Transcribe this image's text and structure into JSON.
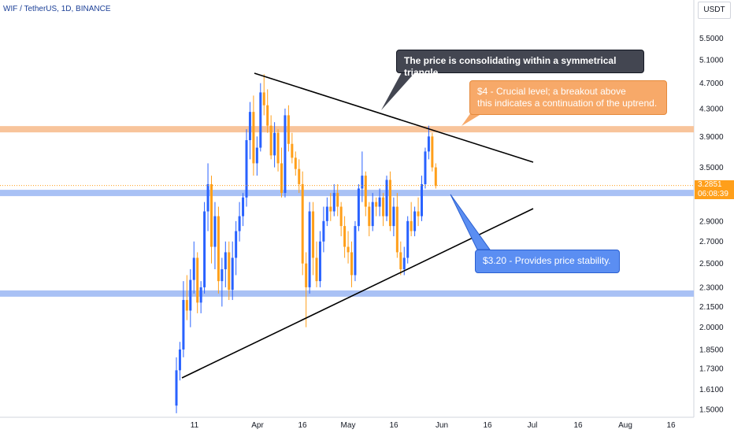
{
  "header": {
    "symbol": "WIF / TetherUS, 1D, BINANCE"
  },
  "currency_badge": "USDT",
  "price_label": {
    "price": "3.2851",
    "countdown": "06:08:39",
    "color": "#ff9f1a"
  },
  "callouts": {
    "triangle": "The price is consolidating within a symmetrical triangle",
    "resistance_line1": "$4 - Crucial level; a breakout above",
    "resistance_line2": "this indicates a continuation of the uptrend.",
    "support": "$3.20 - Provides price stability."
  },
  "colors": {
    "up": "#2962ff",
    "down": "#ff9f1a",
    "resistance_zone": "#f8c49b",
    "support_zone": "#a9c1f5",
    "trendline": "#000000"
  },
  "chart_data": {
    "type": "candlestick",
    "title": "WIF / TetherUS, 1D, BINANCE",
    "y_axis": {
      "scale": "log",
      "ticks": [
        "5.5000",
        "5.1000",
        "4.7000",
        "4.3000",
        "3.9000",
        "3.5000",
        "2.9000",
        "2.7000",
        "2.5000",
        "2.3000",
        "2.1500",
        "2.0000",
        "1.8500",
        "1.7300",
        "1.6100",
        "1.5000"
      ],
      "range": [
        1.45,
        6.4
      ]
    },
    "x_axis": {
      "ticks": [
        "11",
        "Apr",
        "16",
        "May",
        "16",
        "Jun",
        "16",
        "Jul",
        "16",
        "Aug",
        "16"
      ]
    },
    "levels": [
      {
        "name": "resistance",
        "value": 4.0
      },
      {
        "name": "support",
        "value": 3.2
      },
      {
        "name": "support-low",
        "value": 2.25
      }
    ],
    "trendlines": [
      {
        "name": "upper",
        "from": [
          "Apr 1",
          4.85
        ],
        "to": [
          "Jul 1",
          3.6
        ]
      },
      {
        "name": "lower",
        "from": [
          "Mar 10",
          1.68
        ],
        "to": [
          "Jul 1",
          3.0
        ]
      }
    ],
    "candles_ohlc": [
      [
        1.52,
        1.8,
        1.48,
        1.72
      ],
      [
        1.72,
        1.9,
        1.66,
        1.85
      ],
      [
        1.85,
        2.35,
        1.8,
        2.2
      ],
      [
        2.2,
        2.4,
        2.05,
        2.12
      ],
      [
        2.12,
        2.45,
        2.0,
        2.36
      ],
      [
        2.36,
        2.7,
        2.25,
        2.55
      ],
      [
        2.55,
        2.6,
        2.1,
        2.18
      ],
      [
        2.18,
        2.35,
        2.1,
        2.3
      ],
      [
        2.3,
        3.1,
        2.25,
        3.0
      ],
      [
        3.0,
        3.55,
        2.8,
        3.3
      ],
      [
        3.3,
        3.4,
        2.5,
        2.65
      ],
      [
        2.65,
        3.1,
        2.45,
        2.95
      ],
      [
        2.95,
        3.05,
        2.25,
        2.35
      ],
      [
        2.35,
        2.55,
        2.15,
        2.45
      ],
      [
        2.45,
        2.7,
        2.3,
        2.6
      ],
      [
        2.6,
        2.7,
        2.2,
        2.28
      ],
      [
        2.28,
        2.7,
        2.2,
        2.55
      ],
      [
        2.55,
        2.9,
        2.4,
        2.8
      ],
      [
        2.8,
        3.1,
        2.7,
        2.95
      ],
      [
        2.95,
        3.2,
        2.85,
        3.15
      ],
      [
        3.15,
        4.0,
        3.05,
        3.85
      ],
      [
        3.85,
        4.4,
        3.6,
        4.25
      ],
      [
        4.25,
        4.5,
        3.4,
        3.55
      ],
      [
        3.55,
        3.9,
        3.4,
        3.75
      ],
      [
        3.75,
        4.7,
        3.7,
        4.55
      ],
      [
        4.55,
        4.85,
        4.2,
        4.35
      ],
      [
        4.35,
        4.6,
        3.95,
        4.05
      ],
      [
        4.05,
        4.2,
        3.6,
        3.65
      ],
      [
        3.65,
        4.1,
        3.5,
        3.95
      ],
      [
        3.95,
        4.0,
        3.45,
        3.55
      ],
      [
        3.55,
        3.75,
        3.15,
        3.2
      ],
      [
        3.2,
        4.3,
        3.15,
        4.2
      ],
      [
        4.2,
        4.35,
        3.7,
        3.8
      ],
      [
        3.8,
        3.95,
        3.55,
        3.62
      ],
      [
        3.62,
        3.7,
        3.4,
        3.48
      ],
      [
        3.48,
        3.6,
        3.2,
        3.3
      ],
      [
        3.3,
        3.45,
        2.4,
        2.5
      ],
      [
        2.5,
        2.6,
        2.0,
        2.3
      ],
      [
        2.3,
        3.1,
        2.25,
        3.0
      ],
      [
        3.0,
        3.1,
        2.4,
        2.55
      ],
      [
        2.55,
        2.7,
        2.3,
        2.35
      ],
      [
        2.35,
        2.8,
        2.3,
        2.7
      ],
      [
        2.7,
        3.05,
        2.6,
        2.9
      ],
      [
        2.9,
        3.15,
        2.85,
        3.05
      ],
      [
        3.05,
        3.2,
        2.9,
        3.0
      ],
      [
        3.0,
        3.3,
        2.95,
        3.2
      ],
      [
        3.2,
        3.3,
        2.95,
        3.05
      ],
      [
        3.05,
        3.1,
        2.75,
        2.85
      ],
      [
        2.85,
        2.95,
        2.55,
        2.65
      ],
      [
        2.65,
        2.8,
        2.5,
        2.6
      ],
      [
        2.6,
        2.7,
        2.3,
        2.4
      ],
      [
        2.4,
        2.9,
        2.35,
        2.85
      ],
      [
        2.85,
        3.3,
        2.8,
        3.25
      ],
      [
        3.25,
        3.7,
        3.1,
        3.4
      ],
      [
        3.4,
        3.45,
        2.95,
        3.05
      ],
      [
        3.05,
        3.1,
        2.75,
        2.85
      ],
      [
        2.85,
        3.2,
        2.8,
        3.1
      ],
      [
        3.1,
        3.15,
        2.95,
        3.05
      ],
      [
        3.05,
        3.25,
        2.95,
        3.15
      ],
      [
        3.15,
        3.2,
        2.85,
        2.95
      ],
      [
        2.95,
        3.4,
        2.9,
        3.35
      ],
      [
        3.35,
        3.45,
        2.8,
        2.85
      ],
      [
        2.85,
        3.15,
        2.75,
        3.05
      ],
      [
        3.05,
        3.2,
        2.55,
        2.6
      ],
      [
        2.6,
        2.7,
        2.4,
        2.45
      ],
      [
        2.45,
        2.65,
        2.4,
        2.55
      ],
      [
        2.55,
        2.95,
        2.5,
        2.9
      ],
      [
        2.9,
        3.1,
        2.75,
        2.8
      ],
      [
        2.8,
        3.05,
        2.75,
        3.0
      ],
      [
        3.0,
        3.15,
        2.85,
        2.95
      ],
      [
        2.95,
        3.4,
        2.9,
        3.3
      ],
      [
        3.3,
        3.75,
        3.25,
        3.7
      ],
      [
        3.7,
        4.05,
        3.6,
        3.9
      ],
      [
        3.9,
        3.95,
        3.45,
        3.5
      ],
      [
        3.5,
        3.55,
        3.25,
        3.28
      ]
    ]
  }
}
